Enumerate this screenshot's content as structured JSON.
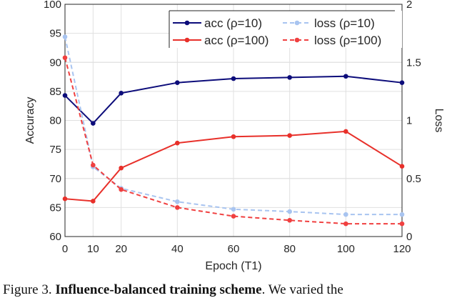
{
  "chart_data": {
    "type": "line",
    "xlabel": "Epoch (T1)",
    "ylabel": "Accuracy",
    "y2label": "Loss",
    "x": [
      0,
      10,
      20,
      40,
      60,
      80,
      100,
      120
    ],
    "xticks": [
      "0",
      "10",
      "20",
      "40",
      "60",
      "80",
      "100",
      "120"
    ],
    "ylim": [
      60,
      100
    ],
    "yticks": [
      "60",
      "65",
      "70",
      "75",
      "80",
      "85",
      "90",
      "95",
      "100"
    ],
    "y2lim": [
      0,
      2
    ],
    "y2ticks": [
      "0",
      "0.5",
      "1",
      "1.5",
      "2"
    ],
    "grid": true,
    "legend_position": "top-right",
    "series": [
      {
        "name": "acc (ρ=10)",
        "axis": "left",
        "style": "solid",
        "color": "#0c0c7a",
        "values": [
          84.3,
          79.5,
          84.7,
          86.5,
          87.2,
          87.4,
          87.6,
          86.5
        ]
      },
      {
        "name": "loss (ρ=10)",
        "axis": "right",
        "style": "dashed",
        "color": "#a8c4f0",
        "values": [
          1.72,
          0.6,
          0.415,
          0.3,
          0.235,
          0.215,
          0.19,
          0.19
        ]
      },
      {
        "name": "acc (ρ=100)",
        "axis": "left",
        "style": "solid",
        "color": "#e8302a",
        "values": [
          66.5,
          66.1,
          71.8,
          76.1,
          77.2,
          77.4,
          78.1,
          72.1
        ]
      },
      {
        "name": "loss (ρ=100)",
        "axis": "right",
        "style": "dashed",
        "color": "#f04040",
        "values": [
          1.54,
          0.615,
          0.405,
          0.25,
          0.175,
          0.14,
          0.11,
          0.11
        ]
      }
    ]
  },
  "caption": {
    "prefix": "Figure 3. ",
    "bold": "Influence-balanced training scheme",
    "rest": ". We varied the"
  }
}
